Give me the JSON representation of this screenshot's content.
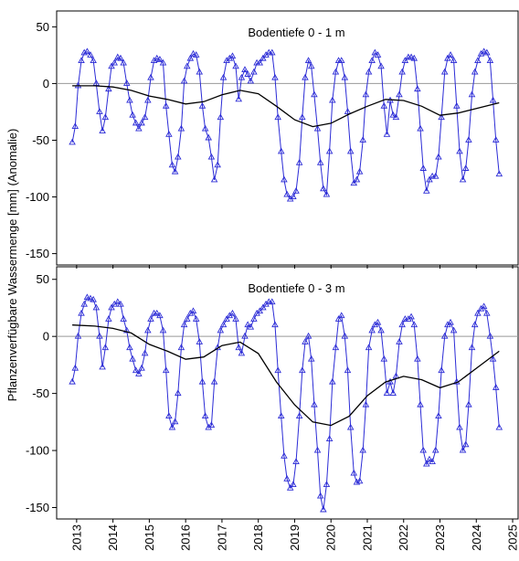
{
  "ylabel": "Pflanzenverfügbare Wassermenge [mm] (Anomalie)",
  "chart_data": [
    {
      "type": "line",
      "title": "Bodentiefe 0 - 1 m",
      "xlim": [
        2012.45,
        2025.15
      ],
      "xticks": [
        2013,
        2014,
        2015,
        2016,
        2017,
        2018,
        2019,
        2020,
        2021,
        2022,
        2023,
        2024,
        2025
      ],
      "ylim": [
        -160,
        64
      ],
      "yticks": [
        50,
        0,
        -50,
        -100,
        -150
      ],
      "hlines": [
        0
      ],
      "series": [
        {
          "color": "#2b2bd6",
          "marker": "triangle",
          "x": [
            2012.88,
            2012.96,
            2013.04,
            2013.13,
            2013.21,
            2013.29,
            2013.38,
            2013.46,
            2013.54,
            2013.63,
            2013.71,
            2013.79,
            2013.88,
            2013.96,
            2014.04,
            2014.13,
            2014.21,
            2014.29,
            2014.38,
            2014.46,
            2014.54,
            2014.63,
            2014.71,
            2014.79,
            2014.88,
            2014.96,
            2015.04,
            2015.13,
            2015.21,
            2015.29,
            2015.38,
            2015.46,
            2015.54,
            2015.63,
            2015.71,
            2015.79,
            2015.88,
            2015.96,
            2016.04,
            2016.13,
            2016.21,
            2016.29,
            2016.38,
            2016.46,
            2016.54,
            2016.63,
            2016.71,
            2016.79,
            2016.88,
            2016.96,
            2017.04,
            2017.13,
            2017.21,
            2017.29,
            2017.38,
            2017.46,
            2017.54,
            2017.63,
            2017.71,
            2017.79,
            2017.88,
            2017.96,
            2018.04,
            2018.13,
            2018.21,
            2018.29,
            2018.38,
            2018.46,
            2018.54,
            2018.63,
            2018.71,
            2018.79,
            2018.88,
            2018.96,
            2019.04,
            2019.13,
            2019.21,
            2019.29,
            2019.38,
            2019.46,
            2019.54,
            2019.63,
            2019.71,
            2019.79,
            2019.88,
            2019.96,
            2020.04,
            2020.13,
            2020.21,
            2020.29,
            2020.38,
            2020.46,
            2020.54,
            2020.63,
            2020.71,
            2020.79,
            2020.88,
            2020.96,
            2021.04,
            2021.13,
            2021.21,
            2021.29,
            2021.38,
            2021.46,
            2021.54,
            2021.63,
            2021.71,
            2021.79,
            2021.88,
            2021.96,
            2022.04,
            2022.13,
            2022.21,
            2022.29,
            2022.38,
            2022.46,
            2022.54,
            2022.63,
            2022.71,
            2022.79,
            2022.88,
            2022.96,
            2023.04,
            2023.13,
            2023.21,
            2023.29,
            2023.38,
            2023.46,
            2023.54,
            2023.63,
            2023.71,
            2023.79,
            2023.88,
            2023.96,
            2024.04,
            2024.13,
            2024.21,
            2024.29,
            2024.38,
            2024.46,
            2024.54,
            2024.63
          ],
          "values": [
            -52,
            -38,
            -2,
            20,
            27,
            28,
            25,
            20,
            0,
            -25,
            -42,
            -30,
            -5,
            15,
            18,
            23,
            22,
            18,
            0,
            -15,
            -28,
            -35,
            -40,
            -35,
            -30,
            -15,
            5,
            20,
            22,
            21,
            18,
            -20,
            -45,
            -72,
            -78,
            -65,
            -40,
            2,
            15,
            22,
            26,
            25,
            10,
            -20,
            -40,
            -48,
            -65,
            -85,
            -72,
            -30,
            5,
            20,
            22,
            24,
            15,
            -14,
            5,
            12,
            8,
            2,
            10,
            18,
            18,
            22,
            25,
            27,
            27,
            5,
            -30,
            -60,
            -85,
            -98,
            -102,
            -100,
            -95,
            -70,
            -30,
            5,
            20,
            15,
            -10,
            -40,
            -70,
            -93,
            -98,
            -60,
            -15,
            10,
            20,
            20,
            5,
            -25,
            -60,
            -88,
            -85,
            -78,
            -50,
            -10,
            10,
            20,
            27,
            25,
            15,
            -20,
            -45,
            -15,
            -28,
            -30,
            -10,
            10,
            20,
            23,
            23,
            22,
            -5,
            -40,
            -75,
            -95,
            -85,
            -82,
            -82,
            -65,
            -30,
            10,
            22,
            25,
            20,
            -20,
            -60,
            -85,
            -75,
            -50,
            -10,
            10,
            20,
            26,
            28,
            27,
            20,
            -15,
            -50,
            -80
          ]
        },
        {
          "color": "#000000",
          "x": [
            2012.88,
            2013.5,
            2014,
            2014.5,
            2015,
            2015.5,
            2016,
            2016.5,
            2017,
            2017.5,
            2018,
            2018.5,
            2019,
            2019.5,
            2020,
            2020.5,
            2021,
            2021.5,
            2022,
            2022.5,
            2023,
            2023.5,
            2024,
            2024.63
          ],
          "values": [
            -2,
            -2,
            -3,
            -6,
            -11,
            -14,
            -18,
            -16,
            -10,
            -6,
            -9,
            -20,
            -32,
            -38,
            -35,
            -27,
            -20,
            -14,
            -15,
            -20,
            -28,
            -26,
            -22,
            -17
          ]
        }
      ]
    },
    {
      "type": "line",
      "title": "Bodentiefe 0 - 3 m",
      "xlim": [
        2012.45,
        2025.15
      ],
      "xticks": [
        2013,
        2014,
        2015,
        2016,
        2017,
        2018,
        2019,
        2020,
        2021,
        2022,
        2023,
        2024,
        2025
      ],
      "ylim": [
        -160,
        61
      ],
      "yticks": [
        50,
        0,
        -50,
        -100,
        -150
      ],
      "hlines": [
        0
      ],
      "series": [
        {
          "color": "#2b2bd6",
          "marker": "triangle",
          "x": [
            2012.88,
            2012.96,
            2013.04,
            2013.13,
            2013.21,
            2013.29,
            2013.38,
            2013.46,
            2013.54,
            2013.63,
            2013.71,
            2013.79,
            2013.88,
            2013.96,
            2014.04,
            2014.13,
            2014.21,
            2014.29,
            2014.38,
            2014.46,
            2014.54,
            2014.63,
            2014.71,
            2014.79,
            2014.88,
            2014.96,
            2015.04,
            2015.13,
            2015.21,
            2015.29,
            2015.38,
            2015.46,
            2015.54,
            2015.63,
            2015.71,
            2015.79,
            2015.88,
            2015.96,
            2016.04,
            2016.13,
            2016.21,
            2016.29,
            2016.38,
            2016.46,
            2016.54,
            2016.63,
            2016.71,
            2016.79,
            2016.88,
            2016.96,
            2017.04,
            2017.13,
            2017.21,
            2017.29,
            2017.38,
            2017.46,
            2017.54,
            2017.63,
            2017.71,
            2017.79,
            2017.88,
            2017.96,
            2018.04,
            2018.13,
            2018.21,
            2018.29,
            2018.38,
            2018.46,
            2018.54,
            2018.63,
            2018.71,
            2018.79,
            2018.88,
            2018.96,
            2019.04,
            2019.13,
            2019.21,
            2019.29,
            2019.38,
            2019.46,
            2019.54,
            2019.63,
            2019.71,
            2019.79,
            2019.88,
            2019.96,
            2020.04,
            2020.13,
            2020.21,
            2020.29,
            2020.38,
            2020.46,
            2020.54,
            2020.63,
            2020.71,
            2020.79,
            2020.88,
            2020.96,
            2021.04,
            2021.13,
            2021.21,
            2021.29,
            2021.38,
            2021.46,
            2021.54,
            2021.63,
            2021.71,
            2021.79,
            2021.88,
            2021.96,
            2022.04,
            2022.13,
            2022.21,
            2022.29,
            2022.38,
            2022.46,
            2022.54,
            2022.63,
            2022.71,
            2022.79,
            2022.88,
            2022.96,
            2023.04,
            2023.13,
            2023.21,
            2023.29,
            2023.38,
            2023.46,
            2023.54,
            2023.63,
            2023.71,
            2023.79,
            2023.88,
            2023.96,
            2024.04,
            2024.13,
            2024.21,
            2024.29,
            2024.38,
            2024.46,
            2024.54,
            2024.63
          ],
          "values": [
            -40,
            -28,
            0,
            20,
            28,
            34,
            33,
            32,
            25,
            0,
            -27,
            -10,
            15,
            25,
            28,
            30,
            28,
            15,
            5,
            -10,
            -20,
            -30,
            -33,
            -28,
            -15,
            5,
            15,
            20,
            20,
            18,
            5,
            -30,
            -70,
            -80,
            -75,
            -50,
            -10,
            10,
            15,
            20,
            22,
            15,
            -5,
            -40,
            -70,
            -80,
            -78,
            -40,
            -10,
            5,
            10,
            15,
            18,
            20,
            15,
            -10,
            -15,
            0,
            10,
            8,
            15,
            20,
            22,
            25,
            28,
            30,
            30,
            10,
            -30,
            -70,
            -105,
            -125,
            -133,
            -130,
            -110,
            -70,
            -30,
            -5,
            0,
            -20,
            -60,
            -100,
            -140,
            -152,
            -130,
            -90,
            -40,
            -10,
            15,
            18,
            0,
            -30,
            -80,
            -120,
            -128,
            -127,
            -100,
            -60,
            -10,
            5,
            10,
            12,
            5,
            -20,
            -50,
            -40,
            -50,
            -35,
            -5,
            10,
            15,
            15,
            17,
            10,
            -20,
            -60,
            -100,
            -112,
            -108,
            -110,
            -100,
            -70,
            -30,
            0,
            10,
            12,
            5,
            -40,
            -80,
            -100,
            -95,
            -60,
            -10,
            10,
            20,
            24,
            26,
            20,
            0,
            -20,
            -45,
            -80
          ]
        },
        {
          "color": "#000000",
          "x": [
            2012.88,
            2013.5,
            2014,
            2014.5,
            2015,
            2015.5,
            2016,
            2016.5,
            2017,
            2017.5,
            2018,
            2018.5,
            2019,
            2019.5,
            2020,
            2020.5,
            2021,
            2021.5,
            2022,
            2022.5,
            2023,
            2023.5,
            2024,
            2024.63
          ],
          "values": [
            10,
            9,
            7,
            3,
            -7,
            -13,
            -20,
            -18,
            -8,
            -5,
            -15,
            -40,
            -60,
            -75,
            -78,
            -70,
            -52,
            -40,
            -35,
            -38,
            -45,
            -40,
            -28,
            -13
          ]
        }
      ]
    }
  ]
}
